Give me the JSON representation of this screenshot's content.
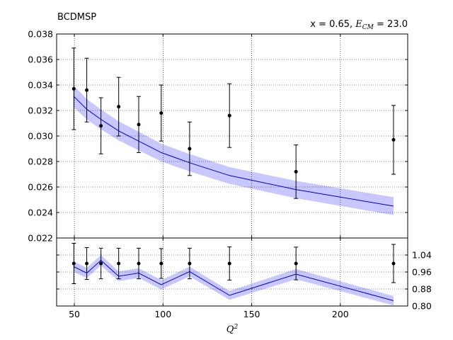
{
  "chart_data": {
    "type": "line",
    "title_left": "BCDMSP",
    "title_right_prefix": "x = 0.65, ",
    "title_right_symbol": "E",
    "title_right_subscript": "CM",
    "title_right_suffix": " = 23.0",
    "xlabel_base": "Q",
    "xlabel_sup": "2",
    "xlim": [
      40,
      238
    ],
    "x_ticks": [
      50,
      100,
      150,
      200
    ],
    "top_panel": {
      "ylim": [
        0.022,
        0.038
      ],
      "y_ticks": [
        "0.022",
        "0.024",
        "0.026",
        "0.028",
        "0.030",
        "0.032",
        "0.034",
        "0.036",
        "0.038"
      ],
      "y_tick_values": [
        0.022,
        0.024,
        0.026,
        0.028,
        0.03,
        0.032,
        0.034,
        0.036,
        0.038
      ],
      "data_points": {
        "x": [
          49.7,
          57.0,
          65.0,
          75.0,
          86.3,
          99.0,
          115.0,
          137.5,
          175.0,
          230.0
        ],
        "y": [
          0.0337,
          0.0336,
          0.0308,
          0.0323,
          0.0309,
          0.0318,
          0.029,
          0.0316,
          0.0272,
          0.0297
        ],
        "err": [
          0.0032,
          0.0025,
          0.0022,
          0.0023,
          0.0022,
          0.0022,
          0.0021,
          0.0025,
          0.0021,
          0.0027
        ]
      },
      "theory": {
        "x": [
          49.7,
          57.0,
          65.0,
          75.0,
          86.3,
          99.0,
          115.0,
          137.5,
          175.0,
          230.0
        ],
        "y": [
          0.0331,
          0.0321,
          0.0313,
          0.0304,
          0.0296,
          0.0287,
          0.0279,
          0.0269,
          0.0258,
          0.0245
        ],
        "band": [
          0.00085,
          0.0008,
          0.00078,
          0.00075,
          0.00073,
          0.0007,
          0.00068,
          0.00066,
          0.00068,
          0.0007
        ]
      }
    },
    "bottom_panel": {
      "ylim": [
        0.8,
        1.12
      ],
      "y_ticks": [
        "0.80",
        "0.88",
        "0.96",
        "1.04"
      ],
      "y_tick_values": [
        0.8,
        0.88,
        0.96,
        1.04
      ],
      "ratio_points": {
        "x": [
          49.7,
          57.0,
          65.0,
          75.0,
          86.3,
          99.0,
          115.0,
          137.5,
          175.0,
          230.0
        ],
        "y": [
          1.0,
          1.0,
          1.0,
          1.0,
          1.0,
          1.0,
          1.0,
          1.0,
          1.0,
          1.0
        ],
        "err": [
          0.095,
          0.075,
          0.072,
          0.072,
          0.072,
          0.07,
          0.072,
          0.078,
          0.077,
          0.09
        ]
      },
      "ratio_theory": {
        "x": [
          49.7,
          57.0,
          65.0,
          75.0,
          86.3,
          99.0,
          115.0,
          137.5,
          175.0,
          230.0
        ],
        "y": [
          0.985,
          0.955,
          1.015,
          0.94,
          0.955,
          0.9,
          0.962,
          0.85,
          0.95,
          0.825
        ],
        "band": [
          0.025,
          0.024,
          0.025,
          0.023,
          0.023,
          0.022,
          0.023,
          0.021,
          0.024,
          0.022
        ]
      }
    },
    "colors": {
      "theory_line": "#0000cc",
      "band": "#c8c8ff",
      "points": "#000000",
      "grid": "#000000",
      "frame": "#000000"
    },
    "grid": true
  }
}
